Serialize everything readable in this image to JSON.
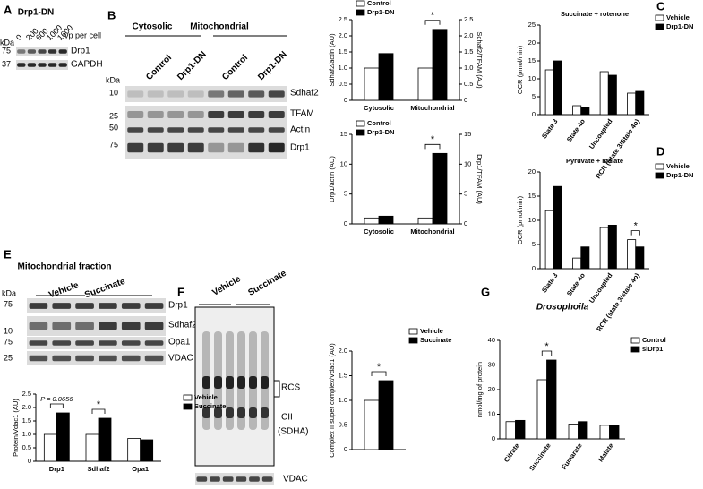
{
  "panels": [
    "A",
    "B",
    "C",
    "D",
    "E",
    "F",
    "G"
  ],
  "blot_a": {
    "title": "Drp1-DN",
    "kda": "kDa",
    "lanes": [
      "0",
      "200",
      "600",
      "1000",
      "1600"
    ],
    "lane_unit": "vp per cell",
    "markers": [
      "75",
      "37"
    ],
    "rows": [
      "Drp1",
      "GAPDH"
    ]
  },
  "blot_b": {
    "groups": [
      "Cytosolic",
      "Mitochondrial"
    ],
    "lanes": [
      "Control",
      "Drp1-DN",
      "Control",
      "Drp1-DN"
    ],
    "kda": "kDa",
    "markers": [
      "10",
      "25",
      "50",
      "75"
    ],
    "rows": [
      "Sdhaf2",
      "TFAM",
      "Actin",
      "Drp1"
    ]
  },
  "blot_e": {
    "title": "Mitochondrial  fraction",
    "kda": "kDa",
    "lanes": [
      "Vehicle",
      "Succinate"
    ],
    "markers": [
      "75",
      "10",
      "75",
      "25"
    ],
    "rows": [
      "Drp1",
      "Sdhaf2",
      "Opa1",
      "VDAC"
    ]
  },
  "blot_f": {
    "lanes": [
      "Vehicle",
      "Succinate"
    ],
    "labels": [
      "RCS",
      "CII",
      "(SDHA)"
    ],
    "rows": [
      "VDAC"
    ]
  },
  "chart_data": [
    {
      "type": "bar",
      "ylabel": "Sdhaf2/actin (AU)",
      "y2label": "Sdhaf2/TFAM (AU)",
      "categories": [
        "Cytosolic",
        "Mitochondrial"
      ],
      "series": [
        {
          "name": "Control",
          "color": "#ffffff",
          "values": [
            1.0,
            1.0
          ]
        },
        {
          "name": "Drp1-DN",
          "color": "#000000",
          "values": [
            1.45,
            2.2
          ]
        }
      ],
      "ylim": [
        0,
        2.5
      ],
      "yticks": [
        0,
        0.5,
        {
          "value": 1,
          "label": "1.0"
        },
        1.5,
        {
          "value": 2,
          "label": "2.0"
        },
        2.5
      ],
      "y2lim": [
        0,
        2.5
      ],
      "y2ticks": [
        0,
        0.5,
        {
          "value": 1,
          "label": "1.0"
        },
        1.5,
        {
          "value": 2,
          "label": "2.0"
        },
        2.5
      ],
      "annotations": [
        "*"
      ]
    },
    {
      "type": "bar",
      "ylabel": "Drp1/actin (AU)",
      "y2label": "Drp1/TFAM (AU)",
      "categories": [
        "Cytosolic",
        "Mitochondrial"
      ],
      "series": [
        {
          "name": "Control",
          "color": "#ffffff",
          "values": [
            1.0,
            1.0
          ]
        },
        {
          "name": "Drp1-DN",
          "color": "#000000",
          "values": [
            1.3,
            11.8
          ]
        }
      ],
      "ylim": [
        0,
        15
      ],
      "yticks": [
        0,
        5,
        10,
        15
      ],
      "y2lim": [
        0,
        15
      ],
      "y2ticks": [
        0,
        5,
        10,
        15
      ],
      "annotations": [
        "*"
      ]
    },
    {
      "type": "bar",
      "title": "Succinate + rotenone",
      "ylabel": "OCR (pmol/min)",
      "categories": [
        "State 3",
        "State 4o",
        "Uncoupled",
        "RCR (State 3/State 4o)"
      ],
      "series": [
        {
          "name": "Vehicle",
          "color": "#ffffff",
          "values": [
            12.5,
            2.5,
            12,
            6
          ]
        },
        {
          "name": "Drp1-DN",
          "color": "#000000",
          "values": [
            15,
            2,
            11,
            6.5
          ]
        }
      ],
      "ylim": [
        0,
        25
      ],
      "yticks": [
        0,
        5,
        10,
        15,
        20,
        25
      ],
      "annotations": []
    },
    {
      "type": "bar",
      "title": "Pyruvate + malate",
      "ylabel": "OCR (pmol/min)",
      "categories": [
        "State 3",
        "State 4o",
        "Uncoupled",
        "RCR (state 3/state 4o)"
      ],
      "series": [
        {
          "name": "Vehicle",
          "color": "#ffffff",
          "values": [
            12,
            2.2,
            8.5,
            6
          ]
        },
        {
          "name": "Drp1-DN",
          "color": "#000000",
          "values": [
            17,
            4.5,
            9,
            4.5
          ]
        }
      ],
      "ylim": [
        0,
        20
      ],
      "yticks": [
        0,
        5,
        10,
        15,
        20
      ],
      "annotations": [
        "*"
      ]
    },
    {
      "type": "bar",
      "ylabel": "Protein/Vdac1 (AU)",
      "categories": [
        "Drp1",
        "Sdhaf2",
        "Opa1"
      ],
      "series": [
        {
          "name": "Vehicle",
          "color": "#ffffff",
          "values": [
            1.0,
            1.0,
            0.85
          ]
        },
        {
          "name": "Succinate",
          "color": "#000000",
          "values": [
            1.8,
            1.6,
            0.8
          ]
        }
      ],
      "ylim": [
        0,
        2.5
      ],
      "yticks": [
        0,
        0.5,
        {
          "value": 1,
          "label": "1.0"
        },
        1.5,
        {
          "value": 2,
          "label": "2.0"
        },
        2.5
      ],
      "annotations": [
        "P = 0.0656",
        "*"
      ]
    },
    {
      "type": "bar",
      "ylabel": "Complex II super complex/Vdac1 (AU)",
      "categories": [
        null
      ],
      "series": [
        {
          "name": "Vehicle",
          "color": "#ffffff",
          "values": [
            1.0
          ]
        },
        {
          "name": "Succinate",
          "color": "#000000",
          "values": [
            1.4
          ]
        }
      ],
      "ylim": [
        0,
        2
      ],
      "yticks": [
        0,
        0.5,
        {
          "value": 1,
          "label": "1.0"
        },
        1.5,
        {
          "value": 2,
          "label": "2.0"
        }
      ],
      "annotations": [
        "*"
      ]
    },
    {
      "type": "bar",
      "title": "Drosophoila",
      "ylabel": "nmol/mg of protein",
      "categories": [
        "Citrate",
        "Succinate",
        "Fumarate",
        "Malate"
      ],
      "series": [
        {
          "name": "Control",
          "color": "#ffffff",
          "values": [
            7,
            24,
            6,
            5.5
          ]
        },
        {
          "name": "siDrp1",
          "color": "#000000",
          "values": [
            7.5,
            32,
            7,
            5.5
          ]
        }
      ],
      "ylim": [
        0,
        40
      ],
      "yticks": [
        0,
        10,
        20,
        30,
        40
      ],
      "annotations": [
        "*"
      ]
    }
  ]
}
